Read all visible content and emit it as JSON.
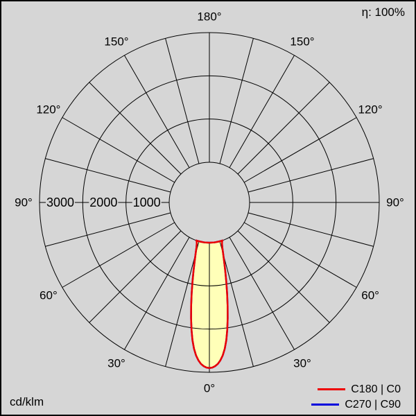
{
  "labels": {
    "efficiency": "η: 100%",
    "unit": "cd/klm"
  },
  "legend": [
    {
      "label": "C180 | C0",
      "color": "#ee0000"
    },
    {
      "label": "C270 | C90",
      "color": "#0000dd"
    }
  ],
  "colors": {
    "background": "#d6d6d6",
    "grid_line": "#000000",
    "beam_fill": "#ffffb8",
    "text": "#000000"
  },
  "chart_data": {
    "type": "polar",
    "unit": "cd/klm",
    "efficiency_percent": 100,
    "axis_max": 3000,
    "ring_values": [
      1000,
      2000,
      3000
    ],
    "angle_labels_deg": [
      0,
      30,
      60,
      90,
      120,
      150,
      180
    ],
    "spoke_step_deg": 15,
    "series": [
      {
        "name": "C180 | C0",
        "color": "#ee0000",
        "points": [
          [
            0,
            2900
          ],
          [
            1,
            2890
          ],
          [
            2,
            2860
          ],
          [
            3,
            2810
          ],
          [
            4,
            2730
          ],
          [
            5,
            2620
          ],
          [
            6,
            2470
          ],
          [
            7,
            2280
          ],
          [
            8,
            2040
          ],
          [
            9,
            1780
          ],
          [
            10,
            1500
          ],
          [
            11,
            1220
          ],
          [
            12,
            950
          ],
          [
            13,
            700
          ],
          [
            14,
            480
          ],
          [
            15,
            300
          ],
          [
            16,
            160
          ],
          [
            17,
            70
          ],
          [
            18,
            20
          ],
          [
            19,
            0
          ],
          [
            30,
            0
          ],
          [
            60,
            0
          ],
          [
            90,
            0
          ],
          [
            120,
            0
          ],
          [
            150,
            0
          ],
          [
            180,
            0
          ]
        ]
      },
      {
        "name": "C270 | C90",
        "color": "#0000dd",
        "points": [
          [
            0,
            2900
          ],
          [
            1,
            2890
          ],
          [
            2,
            2860
          ],
          [
            3,
            2810
          ],
          [
            4,
            2730
          ],
          [
            5,
            2620
          ],
          [
            6,
            2470
          ],
          [
            7,
            2280
          ],
          [
            8,
            2040
          ],
          [
            9,
            1780
          ],
          [
            10,
            1500
          ],
          [
            11,
            1220
          ],
          [
            12,
            950
          ],
          [
            13,
            700
          ],
          [
            14,
            480
          ],
          [
            15,
            300
          ],
          [
            16,
            160
          ],
          [
            17,
            70
          ],
          [
            18,
            20
          ],
          [
            19,
            0
          ],
          [
            30,
            0
          ],
          [
            60,
            0
          ],
          [
            90,
            0
          ],
          [
            120,
            0
          ],
          [
            150,
            0
          ],
          [
            180,
            0
          ]
        ]
      }
    ]
  }
}
